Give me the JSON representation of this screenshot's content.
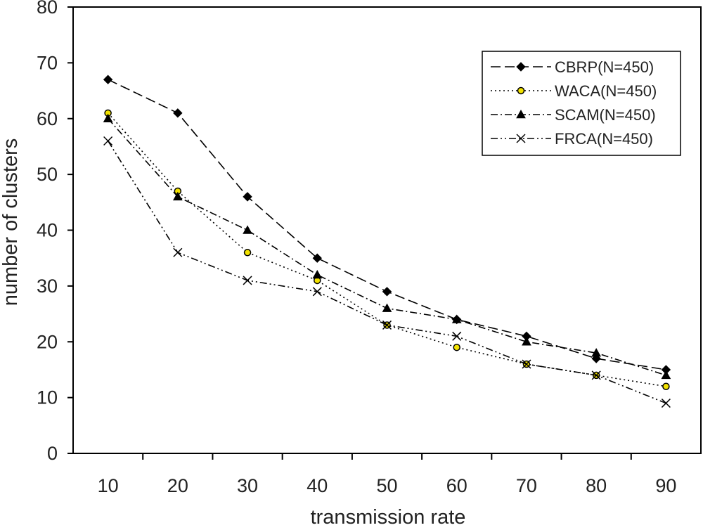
{
  "chart_data": {
    "type": "line",
    "title": "",
    "xlabel": "transmission rate",
    "ylabel": "number of clusters",
    "categories": [
      "10",
      "20",
      "30",
      "40",
      "50",
      "60",
      "70",
      "80",
      "90"
    ],
    "ylim": [
      0,
      80
    ],
    "yticks": [
      "0",
      "10",
      "20",
      "30",
      "40",
      "50",
      "60",
      "70",
      "80"
    ],
    "grid": false,
    "legend_position": "top-right",
    "series": [
      {
        "name": "CBRP(N=450)",
        "marker": "diamond",
        "dash": "long-dash",
        "marker_color": "#000000",
        "values": [
          67,
          61,
          46,
          35,
          29,
          24,
          21,
          17,
          15
        ]
      },
      {
        "name": "WACA(N=450)",
        "marker": "circle",
        "dash": "dotted",
        "marker_color": "#f2e200",
        "values": [
          61,
          47,
          36,
          31,
          23,
          19,
          16,
          14,
          12
        ]
      },
      {
        "name": "SCAM(N=450)",
        "marker": "triangle",
        "dash": "dash-dot",
        "marker_color": "#000000",
        "values": [
          60,
          46,
          40,
          32,
          26,
          24,
          20,
          18,
          14
        ]
      },
      {
        "name": "FRCA(N=450)",
        "marker": "x",
        "dash": "dash-dot-dot",
        "marker_color": "#000000",
        "values": [
          56,
          36,
          31,
          29,
          23,
          21,
          16,
          14,
          9
        ]
      }
    ]
  }
}
